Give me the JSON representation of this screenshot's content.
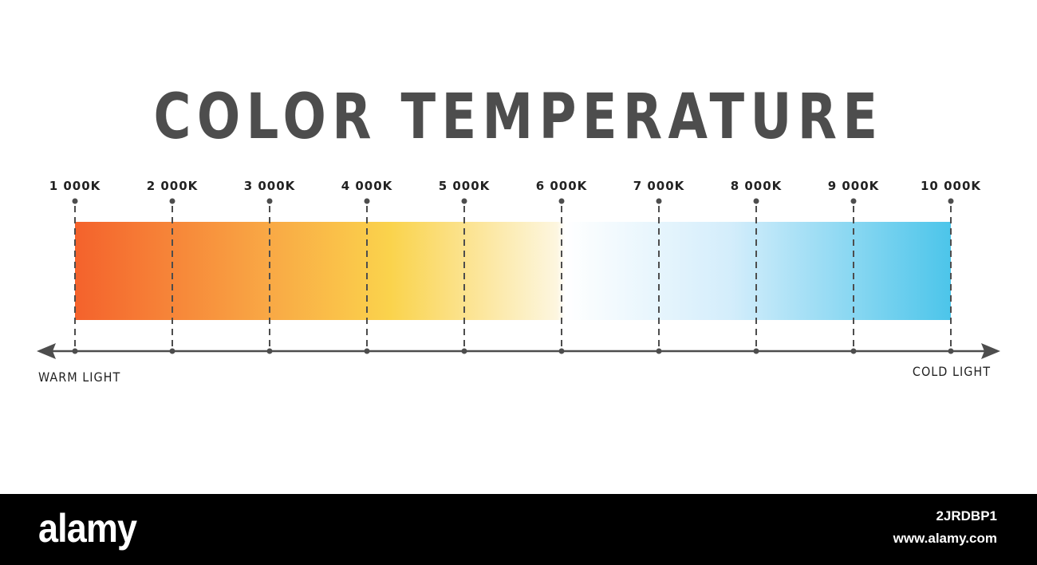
{
  "title": "COLOR TEMPERATURE",
  "scale": {
    "ticks": [
      "1 000K",
      "2 000K",
      "3 000K",
      "4 000K",
      "5 000K",
      "6 000K",
      "7 000K",
      "8 000K",
      "9 000K",
      "10 000K"
    ],
    "gradient_stops": [
      {
        "at": 0.0,
        "color": "#f4622c"
      },
      {
        "at": 0.22,
        "color": "#f9a845"
      },
      {
        "at": 0.36,
        "color": "#fad34c"
      },
      {
        "at": 0.55,
        "color": "#fdf6df"
      },
      {
        "at": 0.56,
        "color": "#ffffff"
      },
      {
        "at": 0.75,
        "color": "#d3edfb"
      },
      {
        "at": 1.0,
        "color": "#4cc5ea"
      }
    ]
  },
  "axis": {
    "left_label": "WARM LIGHT",
    "right_label": "COLD LIGHT",
    "line_color": "#4d4d4d"
  },
  "footer": {
    "brand": "alamy",
    "stock_id": "2JRDBP1",
    "site": "www.alamy.com"
  }
}
